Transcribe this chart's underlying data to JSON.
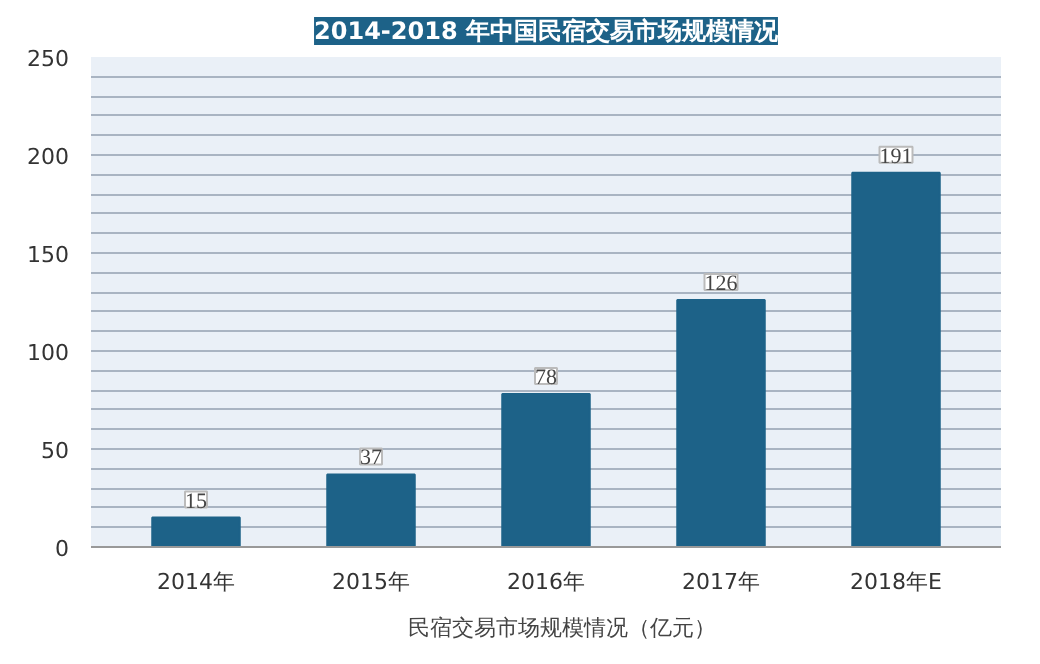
{
  "chart_data": {
    "type": "bar",
    "title": "2014-2018 年中国民宿交易市场规模情况",
    "categories": [
      "2014年",
      "2015年",
      "2016年",
      "2017年",
      "2018年E"
    ],
    "series": [
      {
        "name": "民宿交易市场规模情况（亿元）",
        "color": "#1d6288",
        "values": [
          15,
          37,
          78,
          126,
          191
        ]
      }
    ],
    "ylim": [
      0,
      250
    ],
    "yticks": [
      0,
      {
        "value": 10,
        "label": null
      },
      {
        "value": 20,
        "label": null
      },
      {
        "value": 30,
        "label": null
      },
      {
        "value": 40,
        "label": null
      },
      50,
      {
        "value": 60,
        "label": null
      },
      {
        "value": 70,
        "label": null
      },
      {
        "value": 80,
        "label": null
      },
      {
        "value": 90,
        "label": null
      },
      100,
      {
        "value": 110,
        "label": null
      },
      {
        "value": 120,
        "label": null
      },
      {
        "value": 130,
        "label": null
      },
      {
        "value": 140,
        "label": null
      },
      150,
      {
        "value": 160,
        "label": null
      },
      {
        "value": 170,
        "label": null
      },
      {
        "value": 180,
        "label": null
      },
      {
        "value": 190,
        "label": null
      },
      200,
      {
        "value": 210,
        "label": null
      },
      {
        "value": 220,
        "label": null
      },
      {
        "value": 230,
        "label": null
      },
      {
        "value": 240,
        "label": null
      },
      250
    ],
    "grid": "y",
    "legend": "bottom",
    "data_labels": true
  }
}
